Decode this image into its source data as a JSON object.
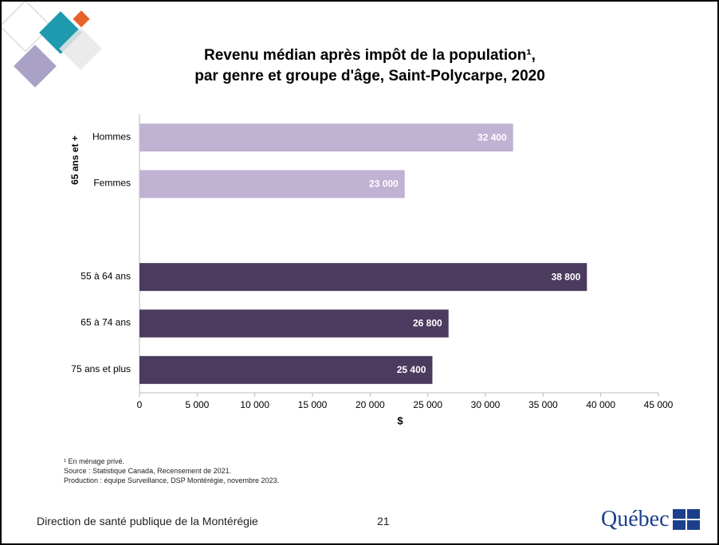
{
  "chart_data": {
    "type": "hbar",
    "title": [
      "Revenu médian après impôt de la population¹,",
      "par genre et groupe d'âge, Saint-Polycarpe, 2020"
    ],
    "group_label": "65 ans et +",
    "categories": [
      "Hommes",
      "Femmes",
      null,
      "55 à 64 ans",
      "65 à 74 ans",
      "75 ans et plus"
    ],
    "values": [
      32400,
      23000,
      null,
      38800,
      26800,
      25400
    ],
    "value_labels": [
      "32 400",
      "23 000",
      null,
      "38 800",
      "26 800",
      "25 400"
    ],
    "colors": [
      "#c0b2d3",
      "#c0b2d3",
      null,
      "#4b3b5f",
      "#4b3b5f",
      "#4b3b5f"
    ],
    "xlim": [
      0,
      45000
    ],
    "xticks": [
      0,
      {
        "value": 5000,
        "label": "5 000"
      },
      {
        "value": 10000,
        "label": "10 000"
      },
      {
        "value": 15000,
        "label": "15 000"
      },
      {
        "value": 20000,
        "label": "20 000"
      },
      {
        "value": 25000,
        "label": "25 000"
      },
      {
        "value": 30000,
        "label": "30 000"
      },
      {
        "value": 35000,
        "label": "35 000"
      },
      {
        "value": 40000,
        "label": "40 000"
      },
      {
        "value": 45000,
        "label": "45 000"
      }
    ],
    "xlabel": "$",
    "notes": [
      "¹ En ménage privé.",
      "Source : Statistique Canada, Recensement de 2021.",
      "Production : équipe Surveillance, DSP Montérégie, novembre 2023."
    ]
  },
  "footer": {
    "left": "Direction de santé publique de la Montérégie",
    "page": "21",
    "logo": "Québec"
  }
}
